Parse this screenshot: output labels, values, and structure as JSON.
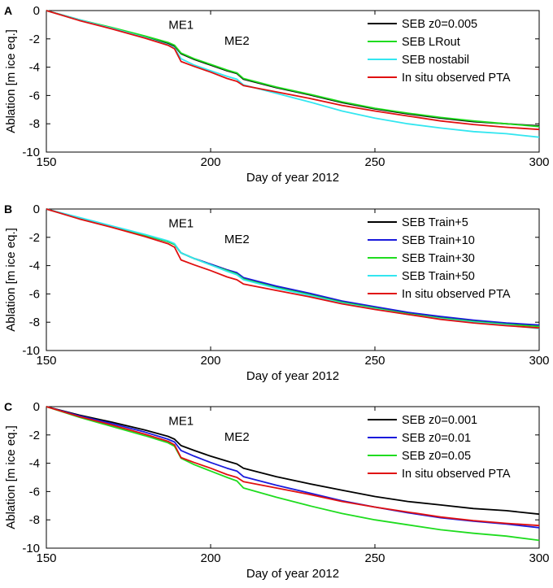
{
  "chart_data": [
    {
      "type": "line",
      "panel_label": "A",
      "xlabel": "Day of year 2012",
      "ylabel": "Ablation [m ice eq.]",
      "xlim": [
        150,
        300
      ],
      "ylim": [
        -10,
        0
      ],
      "xticks": [
        150,
        200,
        250,
        300
      ],
      "yticks": [
        0,
        -2,
        -4,
        -6,
        -8,
        -10
      ],
      "legend_position": "top-right",
      "annotations": [
        {
          "text": "ME1",
          "x": 191,
          "y": -1.3
        },
        {
          "text": "ME2",
          "x": 208,
          "y": -2.4
        }
      ],
      "x": [
        150,
        160,
        170,
        180,
        187,
        189,
        191,
        195,
        200,
        205,
        208,
        210,
        220,
        230,
        240,
        250,
        260,
        270,
        280,
        290,
        300
      ],
      "series": [
        {
          "name": "SEB z0=0.005",
          "color": "#000000",
          "values": [
            0,
            -0.65,
            -1.25,
            -1.85,
            -2.3,
            -2.5,
            -3.05,
            -3.45,
            -3.85,
            -4.25,
            -4.45,
            -4.85,
            -5.45,
            -5.95,
            -6.5,
            -6.95,
            -7.3,
            -7.6,
            -7.85,
            -8.0,
            -8.15
          ]
        },
        {
          "name": "SEB LRout",
          "color": "#1fdc1f",
          "values": [
            0,
            -0.65,
            -1.2,
            -1.8,
            -2.25,
            -2.45,
            -3.0,
            -3.4,
            -3.8,
            -4.2,
            -4.4,
            -4.8,
            -5.4,
            -5.9,
            -6.45,
            -6.9,
            -7.25,
            -7.55,
            -7.8,
            -8.0,
            -8.2
          ]
        },
        {
          "name": "SEB nostabil",
          "color": "#33e6f0",
          "values": [
            0,
            -0.65,
            -1.25,
            -1.9,
            -2.4,
            -2.65,
            -3.4,
            -3.85,
            -4.25,
            -4.65,
            -4.85,
            -5.25,
            -5.85,
            -6.45,
            -7.1,
            -7.6,
            -8.0,
            -8.3,
            -8.55,
            -8.7,
            -8.95
          ]
        },
        {
          "name": "In situ observed PTA",
          "color": "#e01010",
          "values": [
            0,
            -0.7,
            -1.3,
            -1.95,
            -2.45,
            -2.7,
            -3.6,
            -3.95,
            -4.35,
            -4.8,
            -5.0,
            -5.3,
            -5.75,
            -6.2,
            -6.7,
            -7.1,
            -7.45,
            -7.8,
            -8.05,
            -8.25,
            -8.4
          ]
        }
      ]
    },
    {
      "type": "line",
      "panel_label": "B",
      "xlabel": "Day of year 2012",
      "ylabel": "Ablation [m ice eq.]",
      "xlim": [
        150,
        300
      ],
      "ylim": [
        -10,
        0
      ],
      "xticks": [
        150,
        200,
        250,
        300
      ],
      "yticks": [
        0,
        -2,
        -4,
        -6,
        -8,
        -10
      ],
      "legend_position": "top-right",
      "annotations": [
        {
          "text": "ME1",
          "x": 191,
          "y": -1.3
        },
        {
          "text": "ME2",
          "x": 208,
          "y": -2.4
        }
      ],
      "x": [
        150,
        160,
        170,
        180,
        187,
        189,
        191,
        195,
        200,
        205,
        208,
        210,
        220,
        230,
        240,
        250,
        260,
        270,
        280,
        290,
        300
      ],
      "series": [
        {
          "name": "SEB Train+5",
          "color": "#000000",
          "values": [
            0,
            -0.65,
            -1.25,
            -1.85,
            -2.3,
            -2.5,
            -3.1,
            -3.5,
            -3.9,
            -4.3,
            -4.55,
            -4.9,
            -5.5,
            -6.0,
            -6.55,
            -6.95,
            -7.35,
            -7.65,
            -7.9,
            -8.1,
            -8.25
          ]
        },
        {
          "name": "SEB Train+10",
          "color": "#1a1adc",
          "values": [
            0,
            -0.65,
            -1.25,
            -1.85,
            -2.3,
            -2.5,
            -3.1,
            -3.5,
            -3.9,
            -4.3,
            -4.5,
            -4.85,
            -5.45,
            -5.95,
            -6.5,
            -6.9,
            -7.3,
            -7.6,
            -7.85,
            -8.05,
            -8.2
          ]
        },
        {
          "name": "SEB Train+30",
          "color": "#1fdc1f",
          "values": [
            0,
            -0.65,
            -1.25,
            -1.85,
            -2.3,
            -2.5,
            -3.1,
            -3.5,
            -3.95,
            -4.35,
            -4.6,
            -4.95,
            -5.55,
            -6.05,
            -6.6,
            -7.0,
            -7.4,
            -7.7,
            -7.95,
            -8.15,
            -8.3
          ]
        },
        {
          "name": "SEB Train+50",
          "color": "#33e6f0",
          "values": [
            0,
            -0.6,
            -1.2,
            -1.8,
            -2.25,
            -2.45,
            -3.1,
            -3.5,
            -3.95,
            -4.4,
            -4.65,
            -5.0,
            -5.6,
            -6.1,
            -6.65,
            -7.05,
            -7.45,
            -7.75,
            -8.0,
            -8.2,
            -8.45
          ]
        },
        {
          "name": "In situ observed PTA",
          "color": "#e01010",
          "values": [
            0,
            -0.7,
            -1.3,
            -1.95,
            -2.45,
            -2.7,
            -3.6,
            -3.95,
            -4.35,
            -4.8,
            -5.0,
            -5.3,
            -5.75,
            -6.2,
            -6.7,
            -7.1,
            -7.45,
            -7.8,
            -8.05,
            -8.25,
            -8.4
          ]
        }
      ]
    },
    {
      "type": "line",
      "panel_label": "C",
      "xlabel": "Day of year 2012",
      "ylabel": "Ablation [m ice eq.]",
      "xlim": [
        150,
        300
      ],
      "ylim": [
        -10,
        0
      ],
      "xticks": [
        150,
        200,
        250,
        300
      ],
      "yticks": [
        0,
        -2,
        -4,
        -6,
        -8,
        -10
      ],
      "legend_position": "top-right",
      "annotations": [
        {
          "text": "ME1",
          "x": 191,
          "y": -1.3
        },
        {
          "text": "ME2",
          "x": 208,
          "y": -2.4
        }
      ],
      "x": [
        150,
        160,
        170,
        180,
        187,
        189,
        191,
        195,
        200,
        205,
        208,
        210,
        220,
        230,
        240,
        250,
        260,
        270,
        280,
        290,
        300
      ],
      "series": [
        {
          "name": "SEB z0=0.001",
          "color": "#000000",
          "values": [
            0,
            -0.6,
            -1.1,
            -1.65,
            -2.1,
            -2.3,
            -2.75,
            -3.1,
            -3.5,
            -3.85,
            -4.05,
            -4.35,
            -4.95,
            -5.45,
            -5.9,
            -6.35,
            -6.7,
            -6.95,
            -7.2,
            -7.35,
            -7.6
          ]
        },
        {
          "name": "SEB z0=0.01",
          "color": "#1a1adc",
          "values": [
            0,
            -0.65,
            -1.2,
            -1.8,
            -2.3,
            -2.5,
            -3.1,
            -3.5,
            -3.95,
            -4.35,
            -4.55,
            -4.95,
            -5.55,
            -6.1,
            -6.65,
            -7.1,
            -7.5,
            -7.85,
            -8.1,
            -8.3,
            -8.55
          ]
        },
        {
          "name": "SEB z0=0.05",
          "color": "#1fdc1f",
          "values": [
            0,
            -0.75,
            -1.4,
            -2.05,
            -2.55,
            -2.8,
            -3.65,
            -4.1,
            -4.55,
            -5.0,
            -5.25,
            -5.75,
            -6.4,
            -7.0,
            -7.55,
            -8.0,
            -8.35,
            -8.7,
            -8.95,
            -9.15,
            -9.45
          ]
        },
        {
          "name": "In situ observed PTA",
          "color": "#e01010",
          "values": [
            0,
            -0.7,
            -1.3,
            -1.95,
            -2.45,
            -2.7,
            -3.6,
            -3.95,
            -4.35,
            -4.8,
            -5.0,
            -5.3,
            -5.75,
            -6.2,
            -6.7,
            -7.1,
            -7.45,
            -7.8,
            -8.05,
            -8.25,
            -8.4
          ]
        }
      ]
    }
  ]
}
